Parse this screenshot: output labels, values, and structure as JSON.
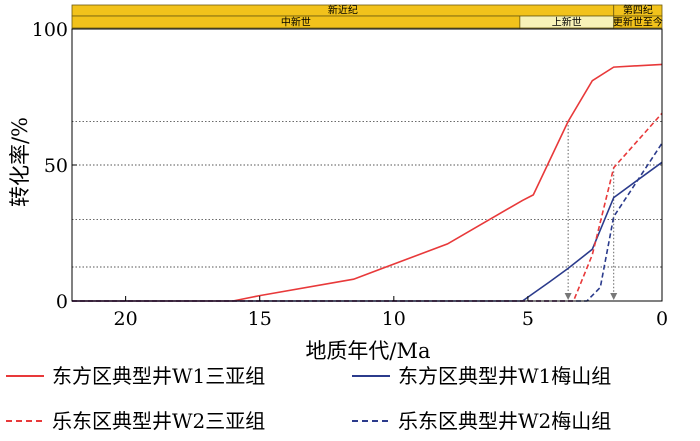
{
  "chart_data": {
    "type": "line",
    "title": "",
    "xlabel": "地质年代/Ma",
    "ylabel": "转化率/%",
    "xlim": [
      22,
      0
    ],
    "ylim": [
      0,
      100
    ],
    "x_ticks": [
      20,
      15,
      10,
      5,
      0
    ],
    "y_ticks": [
      0,
      50,
      100
    ],
    "x_reversed": true,
    "grid": "dotted horizontal reference lines",
    "reference_lines": {
      "horizontal": [
        12.5,
        30,
        50,
        66
      ],
      "vertical": [
        3.5,
        1.8
      ]
    },
    "geologic_scale": {
      "top_row": [
        {
          "label": "新近纪",
          "from": 22,
          "to": 1.8
        },
        {
          "label": "第四纪",
          "from": 1.8,
          "to": 0
        }
      ],
      "bottom_row": [
        {
          "label": "中新世",
          "from": 22,
          "to": 5.3
        },
        {
          "label": "上新世",
          "from": 5.3,
          "to": 1.8
        },
        {
          "label": "更新世至今",
          "from": 1.8,
          "to": 0
        }
      ],
      "color": "#f2c21b",
      "pale_color": "#f7f2b8"
    },
    "series": [
      {
        "name": "东方区典型井W1三亚组",
        "color": "#e8393a",
        "dash": "solid",
        "points": [
          [
            22,
            0
          ],
          [
            16,
            0
          ],
          [
            15,
            2
          ],
          [
            11.5,
            8
          ],
          [
            8,
            21
          ],
          [
            5.2,
            37
          ],
          [
            4.8,
            39
          ],
          [
            3.5,
            66
          ],
          [
            2.6,
            81
          ],
          [
            1.8,
            86
          ],
          [
            0,
            87
          ]
        ]
      },
      {
        "name": "东方区典型井W1梅山组",
        "color": "#2b3b8c",
        "dash": "solid",
        "points": [
          [
            22,
            0
          ],
          [
            5.2,
            0
          ],
          [
            4.2,
            7
          ],
          [
            3.5,
            12
          ],
          [
            2.6,
            19
          ],
          [
            1.8,
            38
          ],
          [
            0,
            51
          ]
        ]
      },
      {
        "name": "乐东区典型井W2三亚组",
        "color": "#e8393a",
        "dash": "dashed",
        "points": [
          [
            22,
            0
          ],
          [
            3.3,
            0
          ],
          [
            2.6,
            17
          ],
          [
            1.8,
            49
          ],
          [
            0,
            69
          ]
        ]
      },
      {
        "name": "乐东区典型井W2梅山组",
        "color": "#2b3b8c",
        "dash": "dashed",
        "points": [
          [
            22,
            0
          ],
          [
            2.8,
            0
          ],
          [
            2.3,
            5
          ],
          [
            1.8,
            31
          ],
          [
            0.6,
            49
          ],
          [
            0,
            58
          ]
        ]
      }
    ]
  }
}
